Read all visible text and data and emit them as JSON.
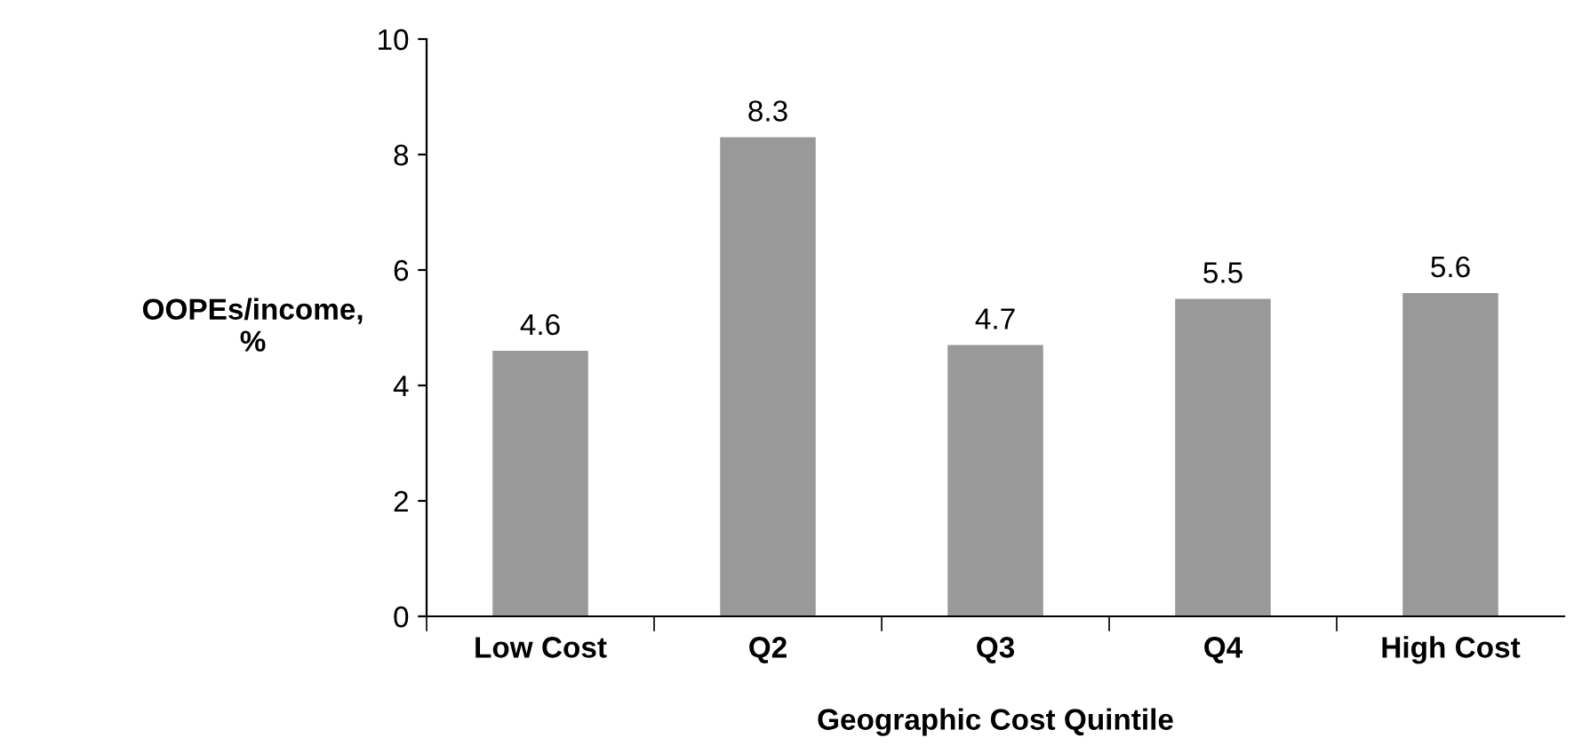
{
  "chart_data": {
    "type": "bar",
    "xlabel": "Geographic Cost Quintile",
    "ylabel": "OOPEs/income,\n%",
    "categories": [
      "Low Cost",
      "Q2",
      "Q3",
      "Q4",
      "High Cost"
    ],
    "values": [
      4.6,
      8.3,
      4.7,
      5.5,
      5.6
    ],
    "color": "#999999",
    "ylim": [
      0,
      10
    ],
    "yticks": [
      0,
      2,
      4,
      6,
      8,
      10
    ],
    "grid": false,
    "data_labels": true
  }
}
